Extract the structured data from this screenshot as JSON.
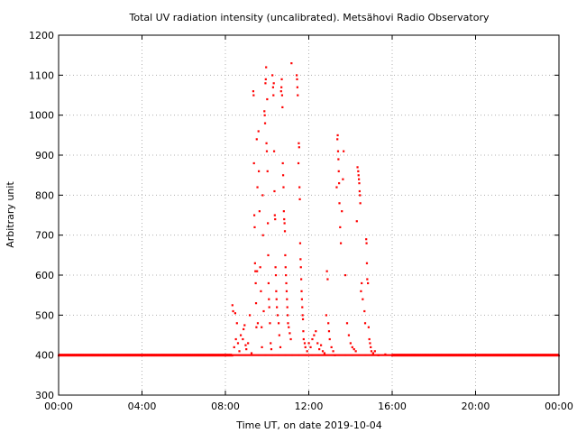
{
  "chart_data": {
    "type": "scatter",
    "title": "Total UV radiation intensity (uncalibrated). Metsähovi Radio Observatory",
    "xlabel": "Time UT, on date 2019-10-04",
    "ylabel": "Arbitrary unit",
    "xlim": [
      "00:00",
      "24:00"
    ],
    "ylim": [
      300,
      1200
    ],
    "x_ticks": [
      "00:00",
      "04:00",
      "08:00",
      "12:00",
      "16:00",
      "20:00",
      "00:00"
    ],
    "y_ticks": [
      300,
      400,
      500,
      600,
      700,
      800,
      900,
      1000,
      1100,
      1200
    ],
    "grid": true,
    "marker_color": "#ff0000",
    "baseline": {
      "value": 400,
      "periods": [
        [
          "00:00",
          "08:20"
        ],
        [
          "16:00",
          "24:00"
        ]
      ]
    },
    "series": [
      {
        "points": [
          [
            "08:20",
            525
          ],
          [
            "08:22",
            510
          ],
          [
            "08:25",
            420
          ],
          [
            "08:28",
            505
          ],
          [
            "08:30",
            440
          ],
          [
            "08:33",
            480
          ],
          [
            "08:36",
            430
          ],
          [
            "08:40",
            410
          ],
          [
            "08:44",
            450
          ],
          [
            "08:50",
            440
          ],
          [
            "08:52",
            465
          ],
          [
            "08:55",
            475
          ],
          [
            "08:58",
            425
          ],
          [
            "09:00",
            415
          ],
          [
            "09:05",
            430
          ],
          [
            "09:10",
            500
          ],
          [
            "09:15",
            405
          ],
          [
            "09:20",
            1060
          ],
          [
            "09:21",
            1050
          ],
          [
            "09:22",
            880
          ],
          [
            "09:23",
            750
          ],
          [
            "09:24",
            720
          ],
          [
            "09:25",
            630
          ],
          [
            "09:26",
            610
          ],
          [
            "09:27",
            580
          ],
          [
            "09:28",
            530
          ],
          [
            "09:29",
            470
          ],
          [
            "09:30",
            940
          ],
          [
            "09:31",
            610
          ],
          [
            "09:32",
            820
          ],
          [
            "09:33",
            480
          ],
          [
            "09:35",
            960
          ],
          [
            "09:36",
            860
          ],
          [
            "09:38",
            760
          ],
          [
            "09:40",
            620
          ],
          [
            "09:42",
            560
          ],
          [
            "09:44",
            470
          ],
          [
            "09:45",
            420
          ],
          [
            "09:47",
            800
          ],
          [
            "09:48",
            700
          ],
          [
            "09:50",
            510
          ],
          [
            "09:52",
            1010
          ],
          [
            "09:53",
            1000
          ],
          [
            "09:54",
            980
          ],
          [
            "09:55",
            1080
          ],
          [
            "09:56",
            1090
          ],
          [
            "09:57",
            1120
          ],
          [
            "09:58",
            930
          ],
          [
            "09:59",
            910
          ],
          [
            "10:00",
            1040
          ],
          [
            "10:01",
            860
          ],
          [
            "10:02",
            730
          ],
          [
            "10:03",
            650
          ],
          [
            "10:04",
            580
          ],
          [
            "10:05",
            540
          ],
          [
            "10:06",
            520
          ],
          [
            "10:08",
            480
          ],
          [
            "10:10",
            430
          ],
          [
            "10:12",
            415
          ],
          [
            "10:15",
            1100
          ],
          [
            "10:17",
            1070
          ],
          [
            "10:18",
            1050
          ],
          [
            "10:19",
            1080
          ],
          [
            "10:20",
            910
          ],
          [
            "10:21",
            810
          ],
          [
            "10:22",
            750
          ],
          [
            "10:23",
            740
          ],
          [
            "10:24",
            620
          ],
          [
            "10:25",
            600
          ],
          [
            "10:26",
            560
          ],
          [
            "10:27",
            540
          ],
          [
            "10:28",
            520
          ],
          [
            "10:30",
            500
          ],
          [
            "10:33",
            480
          ],
          [
            "10:35",
            450
          ],
          [
            "10:38",
            420
          ],
          [
            "10:40",
            1060
          ],
          [
            "10:41",
            1070
          ],
          [
            "10:42",
            1090
          ],
          [
            "10:43",
            1050
          ],
          [
            "10:44",
            1020
          ],
          [
            "10:45",
            880
          ],
          [
            "10:46",
            850
          ],
          [
            "10:47",
            820
          ],
          [
            "10:48",
            760
          ],
          [
            "10:49",
            740
          ],
          [
            "10:50",
            730
          ],
          [
            "10:51",
            710
          ],
          [
            "10:52",
            650
          ],
          [
            "10:53",
            620
          ],
          [
            "10:54",
            600
          ],
          [
            "10:55",
            580
          ],
          [
            "10:56",
            560
          ],
          [
            "10:57",
            540
          ],
          [
            "10:58",
            520
          ],
          [
            "10:59",
            500
          ],
          [
            "11:00",
            480
          ],
          [
            "11:02",
            470
          ],
          [
            "11:05",
            455
          ],
          [
            "11:08",
            440
          ],
          [
            "11:10",
            1130
          ],
          [
            "11:25",
            1100
          ],
          [
            "11:26",
            1090
          ],
          [
            "11:27",
            1070
          ],
          [
            "11:28",
            1050
          ],
          [
            "11:30",
            880
          ],
          [
            "11:31",
            930
          ],
          [
            "11:32",
            920
          ],
          [
            "11:33",
            820
          ],
          [
            "11:34",
            790
          ],
          [
            "11:35",
            680
          ],
          [
            "11:36",
            640
          ],
          [
            "11:37",
            620
          ],
          [
            "11:38",
            590
          ],
          [
            "11:39",
            560
          ],
          [
            "11:40",
            540
          ],
          [
            "11:41",
            520
          ],
          [
            "11:42",
            500
          ],
          [
            "11:43",
            490
          ],
          [
            "11:44",
            460
          ],
          [
            "11:45",
            440
          ],
          [
            "11:48",
            430
          ],
          [
            "11:50",
            420
          ],
          [
            "11:55",
            410
          ],
          [
            "12:00",
            430
          ],
          [
            "12:05",
            420
          ],
          [
            "12:10",
            440
          ],
          [
            "12:15",
            450
          ],
          [
            "12:20",
            460
          ],
          [
            "12:25",
            430
          ],
          [
            "12:30",
            415
          ],
          [
            "12:35",
            425
          ],
          [
            "12:40",
            410
          ],
          [
            "12:45",
            405
          ],
          [
            "12:50",
            500
          ],
          [
            "12:52",
            610
          ],
          [
            "12:54",
            590
          ],
          [
            "12:56",
            480
          ],
          [
            "12:58",
            460
          ],
          [
            "13:00",
            440
          ],
          [
            "13:05",
            420
          ],
          [
            "13:10",
            410
          ],
          [
            "13:15",
            400
          ],
          [
            "13:20",
            820
          ],
          [
            "13:22",
            940
          ],
          [
            "13:23",
            950
          ],
          [
            "13:24",
            910
          ],
          [
            "13:25",
            890
          ],
          [
            "13:26",
            860
          ],
          [
            "13:27",
            830
          ],
          [
            "13:28",
            780
          ],
          [
            "13:30",
            720
          ],
          [
            "13:32",
            680
          ],
          [
            "13:35",
            760
          ],
          [
            "13:38",
            840
          ],
          [
            "13:40",
            910
          ],
          [
            "13:45",
            600
          ],
          [
            "13:50",
            480
          ],
          [
            "13:55",
            450
          ],
          [
            "14:00",
            430
          ],
          [
            "14:05",
            420
          ],
          [
            "14:10",
            415
          ],
          [
            "14:15",
            410
          ],
          [
            "14:18",
            735
          ],
          [
            "14:20",
            870
          ],
          [
            "14:22",
            860
          ],
          [
            "14:23",
            850
          ],
          [
            "14:24",
            840
          ],
          [
            "14:25",
            830
          ],
          [
            "14:26",
            810
          ],
          [
            "14:27",
            800
          ],
          [
            "14:28",
            780
          ],
          [
            "14:30",
            560
          ],
          [
            "14:32",
            580
          ],
          [
            "14:35",
            540
          ],
          [
            "14:40",
            510
          ],
          [
            "14:42",
            480
          ],
          [
            "14:45",
            690
          ],
          [
            "14:46",
            680
          ],
          [
            "14:47",
            630
          ],
          [
            "14:48",
            590
          ],
          [
            "14:50",
            580
          ],
          [
            "14:52",
            470
          ],
          [
            "14:54",
            440
          ],
          [
            "14:56",
            430
          ],
          [
            "14:58",
            420
          ],
          [
            "15:00",
            410
          ],
          [
            "15:05",
            405
          ],
          [
            "15:10",
            410
          ],
          [
            "15:20",
            400
          ],
          [
            "15:40",
            402
          ]
        ]
      }
    ]
  }
}
